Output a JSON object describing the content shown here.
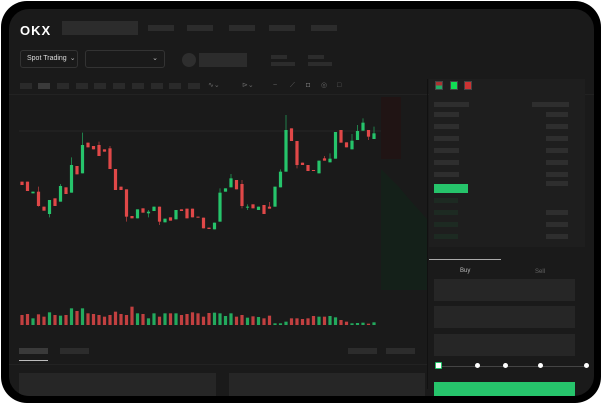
{
  "header": {
    "logo": "OKX",
    "nav_count": 5
  },
  "toolbar": {
    "market_select": "Spot Trading",
    "pair_select": ""
  },
  "orderbook": {
    "icons": [
      "book-both-icon",
      "book-bids-icon",
      "book-asks-icon"
    ]
  },
  "trade": {
    "tabs": [
      {
        "label": "Buy",
        "active": true
      },
      {
        "label": "Sell",
        "active": false
      }
    ],
    "slider_percent": 0
  },
  "colors": {
    "up": "#26c46b",
    "down": "#e04848",
    "bg": "#1a1a1a"
  },
  "chart_data": {
    "type": "candlestick",
    "candles": [
      [
        185,
        175,
        185,
        175
      ],
      [
        185,
        157,
        185,
        157
      ],
      [
        150,
        155,
        155,
        150
      ],
      [
        155,
        112,
        170,
        110
      ],
      [
        110,
        98,
        110,
        98
      ],
      [
        88,
        130,
        130,
        78
      ],
      [
        135,
        112,
        135,
        112
      ],
      [
        125,
        172,
        178,
        125
      ],
      [
        168,
        148,
        168,
        148
      ],
      [
        152,
        235,
        258,
        152
      ],
      [
        232,
        207,
        232,
        207
      ],
      [
        210,
        295,
        332,
        210
      ],
      [
        302,
        288,
        302,
        288
      ],
      [
        292,
        282,
        292,
        282
      ],
      [
        295,
        262,
        305,
        262
      ],
      [
        282,
        275,
        282,
        275
      ],
      [
        285,
        223,
        292,
        223
      ],
      [
        223,
        160,
        223,
        160
      ],
      [
        170,
        160,
        170,
        160
      ],
      [
        162,
        80,
        162,
        65
      ],
      [
        82,
        75,
        82,
        75
      ],
      [
        75,
        102,
        102,
        75
      ],
      [
        105,
        92,
        105,
        92
      ],
      [
        90,
        95,
        100,
        78
      ],
      [
        97,
        110,
        110,
        97
      ],
      [
        110,
        65,
        110,
        55
      ],
      [
        63,
        74,
        74,
        63
      ],
      [
        78,
        68,
        78,
        68
      ],
      [
        72,
        100,
        100,
        72
      ],
      [
        102,
        97,
        102,
        97
      ],
      [
        104,
        75,
        104,
        75
      ],
      [
        104,
        78,
        104,
        78
      ],
      [
        80,
        77,
        80,
        77
      ],
      [
        77,
        45,
        77,
        45
      ],
      [
        47,
        43,
        47,
        43
      ],
      [
        42,
        62,
        62,
        42
      ],
      [
        65,
        152,
        165,
        65
      ],
      [
        155,
        165,
        165,
        155
      ],
      [
        168,
        195,
        208,
        168
      ],
      [
        190,
        162,
        190,
        162
      ],
      [
        178,
        112,
        190,
        105
      ],
      [
        107,
        110,
        117,
        100
      ],
      [
        117,
        105,
        117,
        105
      ],
      [
        100,
        110,
        110,
        100
      ],
      [
        115,
        88,
        115,
        88
      ],
      [
        110,
        104,
        124,
        104
      ],
      [
        110,
        170,
        170,
        110
      ],
      [
        168,
        215,
        222,
        168
      ],
      [
        215,
        340,
        385,
        215
      ],
      [
        345,
        307,
        345,
        307
      ],
      [
        307,
        235,
        307,
        225
      ],
      [
        242,
        235,
        242,
        235
      ],
      [
        235,
        217,
        235,
        217
      ],
      [
        220,
        217,
        220,
        217
      ],
      [
        210,
        248,
        248,
        210
      ],
      [
        255,
        248,
        262,
        248
      ],
      [
        243,
        254,
        270,
        243
      ],
      [
        254,
        334,
        334,
        254
      ],
      [
        340,
        302,
        340,
        302
      ],
      [
        303,
        288,
        303,
        288
      ],
      [
        282,
        308,
        328,
        282
      ],
      [
        310,
        337,
        355,
        310
      ],
      [
        338,
        362,
        375,
        338
      ],
      [
        340,
        320,
        340,
        310
      ],
      [
        313,
        330,
        350,
        313
      ]
    ],
    "volumes": [
      30,
      33,
      20,
      32,
      25,
      38,
      30,
      28,
      30,
      50,
      42,
      50,
      35,
      33,
      30,
      25,
      30,
      40,
      33,
      30,
      55,
      35,
      33,
      20,
      35,
      25,
      35,
      35,
      35,
      30,
      33,
      38,
      35,
      25,
      36,
      37,
      35,
      27,
      35,
      25,
      30,
      22,
      26,
      24,
      20,
      28,
      5,
      5,
      10,
      20,
      20,
      18,
      20,
      27,
      25,
      25,
      27,
      23,
      15,
      10,
      5,
      6,
      7,
      4,
      8
    ]
  }
}
